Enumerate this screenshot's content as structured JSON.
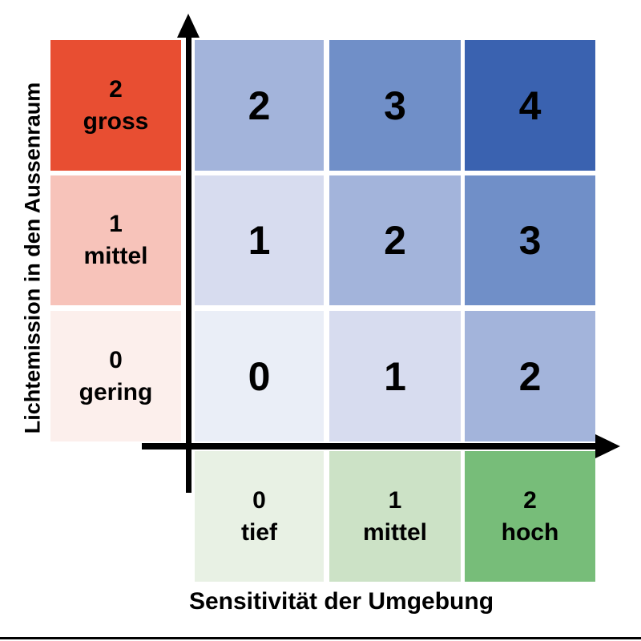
{
  "axes": {
    "y_label": "Lichtemission in den Aussenraum",
    "x_label": "Sensitivität der Umgebung",
    "axis_color": "#000000"
  },
  "y_categories": [
    {
      "value": "2",
      "label": "gross",
      "color": "#e84e32"
    },
    {
      "value": "1",
      "label": "mittel",
      "color": "#f7c3ba"
    },
    {
      "value": "0",
      "label": "gering",
      "color": "#fcefec"
    }
  ],
  "x_categories": [
    {
      "value": "0",
      "label": "tief",
      "color": "#e8f1e4"
    },
    {
      "value": "1",
      "label": "mittel",
      "color": "#cce2c6"
    },
    {
      "value": "2",
      "label": "hoch",
      "color": "#77bd79"
    }
  ],
  "matrix": {
    "rows": [
      {
        "cells": [
          {
            "value": "2",
            "color": "#a3b4db"
          },
          {
            "value": "3",
            "color": "#708fc8"
          },
          {
            "value": "4",
            "color": "#3a62b0"
          }
        ]
      },
      {
        "cells": [
          {
            "value": "1",
            "color": "#d7dcef"
          },
          {
            "value": "2",
            "color": "#a3b4db"
          },
          {
            "value": "3",
            "color": "#708fc8"
          }
        ]
      },
      {
        "cells": [
          {
            "value": "0",
            "color": "#eaeef7"
          },
          {
            "value": "1",
            "color": "#d7dcef"
          },
          {
            "value": "2",
            "color": "#a3b4db"
          }
        ]
      }
    ]
  },
  "chart_data": {
    "type": "heatmap",
    "title": "",
    "xlabel": "Sensitivität der Umgebung",
    "ylabel": "Lichtemission in den Aussenraum",
    "x_categories": [
      "0 tief",
      "1 mittel",
      "2 hoch"
    ],
    "y_categories_top_to_bottom": [
      "2 gross",
      "1 mittel",
      "0 gering"
    ],
    "values_rows_top_to_bottom": [
      [
        2,
        3,
        4
      ],
      [
        1,
        2,
        3
      ],
      [
        0,
        1,
        2
      ]
    ],
    "x_axis_values": [
      0,
      1,
      2
    ],
    "y_axis_values_top_to_bottom": [
      2,
      1,
      0
    ],
    "legend": "none",
    "grid": "off"
  }
}
